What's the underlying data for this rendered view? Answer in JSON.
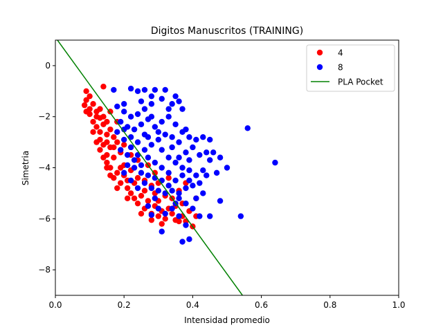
{
  "chart_data": {
    "type": "scatter",
    "title": "Digitos Manuscritos (TRAINING)",
    "xlabel": "Intensidad promedio",
    "ylabel": "Simetria",
    "xlim": [
      0.0,
      1.0
    ],
    "ylim": [
      -9.0,
      1.0
    ],
    "xticks": [
      0.0,
      0.2,
      0.4,
      0.6,
      0.8,
      1.0
    ],
    "xtick_labels": [
      "0.0",
      "0.2",
      "0.4",
      "0.6",
      "0.8",
      "1.0"
    ],
    "yticks": [
      0,
      -2,
      -4,
      -6,
      -8
    ],
    "ytick_labels": [
      "0",
      "−2",
      "−4",
      "−6",
      "−8"
    ],
    "legend_position": "top-right",
    "grid": false,
    "series": [
      {
        "name": "4",
        "kind": "points",
        "color": "#ff0000",
        "points": [
          [
            0.14,
            -0.82
          ],
          [
            0.09,
            -1.0
          ],
          [
            0.1,
            -1.2
          ],
          [
            0.09,
            -1.35
          ],
          [
            0.085,
            -1.55
          ],
          [
            0.09,
            -1.8
          ],
          [
            0.1,
            -1.7
          ],
          [
            0.11,
            -1.5
          ],
          [
            0.1,
            -1.9
          ],
          [
            0.12,
            -2.0
          ],
          [
            0.11,
            -2.2
          ],
          [
            0.13,
            -2.05
          ],
          [
            0.12,
            -2.4
          ],
          [
            0.13,
            -2.6
          ],
          [
            0.14,
            -2.3
          ],
          [
            0.13,
            -2.9
          ],
          [
            0.14,
            -3.1
          ],
          [
            0.15,
            -2.7
          ],
          [
            0.13,
            -3.3
          ],
          [
            0.15,
            -3.5
          ],
          [
            0.16,
            -3.2
          ],
          [
            0.15,
            -3.8
          ],
          [
            0.16,
            -4.0
          ],
          [
            0.17,
            -3.6
          ],
          [
            0.18,
            -4.2
          ],
          [
            0.17,
            -4.4
          ],
          [
            0.19,
            -4.6
          ],
          [
            0.2,
            -4.3
          ],
          [
            0.21,
            -4.8
          ],
          [
            0.22,
            -5.0
          ],
          [
            0.23,
            -5.2
          ],
          [
            0.24,
            -5.4
          ],
          [
            0.25,
            -5.1
          ],
          [
            0.26,
            -5.6
          ],
          [
            0.27,
            -5.3
          ],
          [
            0.28,
            -5.8
          ],
          [
            0.29,
            -5.5
          ],
          [
            0.3,
            -5.9
          ],
          [
            0.31,
            -5.7
          ],
          [
            0.32,
            -6.0
          ],
          [
            0.33,
            -5.6
          ],
          [
            0.35,
            -6.05
          ],
          [
            0.38,
            -6.1
          ],
          [
            0.4,
            -6.3
          ],
          [
            0.41,
            -5.9
          ],
          [
            0.37,
            -5.4
          ],
          [
            0.34,
            -5.2
          ],
          [
            0.36,
            -4.9
          ],
          [
            0.3,
            -4.6
          ],
          [
            0.28,
            -4.7
          ],
          [
            0.26,
            -4.5
          ],
          [
            0.24,
            -4.4
          ],
          [
            0.22,
            -4.1
          ],
          [
            0.2,
            -3.9
          ],
          [
            0.19,
            -3.4
          ],
          [
            0.18,
            -3.0
          ],
          [
            0.17,
            -2.8
          ],
          [
            0.16,
            -2.5
          ],
          [
            0.15,
            -2.2
          ],
          [
            0.14,
            -2.0
          ],
          [
            0.13,
            -1.7
          ],
          [
            0.12,
            -1.8
          ],
          [
            0.11,
            -2.6
          ],
          [
            0.12,
            -3.0
          ],
          [
            0.14,
            -3.6
          ],
          [
            0.16,
            -4.3
          ],
          [
            0.18,
            -4.8
          ],
          [
            0.21,
            -5.2
          ],
          [
            0.25,
            -5.8
          ],
          [
            0.28,
            -6.05
          ],
          [
            0.31,
            -6.2
          ],
          [
            0.34,
            -5.8
          ],
          [
            0.39,
            -5.7
          ],
          [
            0.41,
            -5.2
          ],
          [
            0.38,
            -4.6
          ],
          [
            0.33,
            -4.4
          ],
          [
            0.29,
            -4.2
          ],
          [
            0.27,
            -3.9
          ],
          [
            0.24,
            -3.7
          ],
          [
            0.22,
            -3.5
          ],
          [
            0.2,
            -3.1
          ],
          [
            0.17,
            -3.2
          ],
          [
            0.15,
            -3.0
          ],
          [
            0.16,
            -1.8
          ],
          [
            0.18,
            -2.2
          ],
          [
            0.19,
            -4.0
          ],
          [
            0.23,
            -4.6
          ],
          [
            0.26,
            -4.9
          ],
          [
            0.3,
            -5.3
          ],
          [
            0.32,
            -5.1
          ],
          [
            0.35,
            -5.5
          ],
          [
            0.37,
            -5.9
          ],
          [
            0.36,
            -6.1
          ],
          [
            0.29,
            -5.0
          ],
          [
            0.21,
            -4.5
          ],
          [
            0.15,
            -4.0
          ]
        ]
      },
      {
        "name": "8",
        "kind": "points",
        "color": "#0000ff",
        "points": [
          [
            0.56,
            -2.45
          ],
          [
            0.64,
            -3.8
          ],
          [
            0.54,
            -5.9
          ],
          [
            0.22,
            -0.9
          ],
          [
            0.24,
            -1.0
          ],
          [
            0.26,
            -0.95
          ],
          [
            0.29,
            -0.95
          ],
          [
            0.32,
            -0.95
          ],
          [
            0.28,
            -1.2
          ],
          [
            0.31,
            -1.3
          ],
          [
            0.35,
            -1.2
          ],
          [
            0.17,
            -0.95
          ],
          [
            0.18,
            -1.6
          ],
          [
            0.2,
            -1.5
          ],
          [
            0.34,
            -1.5
          ],
          [
            0.37,
            -1.7
          ],
          [
            0.36,
            -1.4
          ],
          [
            0.33,
            -1.7
          ],
          [
            0.28,
            -1.5
          ],
          [
            0.26,
            -1.7
          ],
          [
            0.24,
            -1.9
          ],
          [
            0.22,
            -2.0
          ],
          [
            0.2,
            -1.8
          ],
          [
            0.19,
            -2.2
          ],
          [
            0.21,
            -2.4
          ],
          [
            0.23,
            -2.5
          ],
          [
            0.25,
            -2.3
          ],
          [
            0.27,
            -2.1
          ],
          [
            0.29,
            -2.4
          ],
          [
            0.31,
            -2.2
          ],
          [
            0.33,
            -2.0
          ],
          [
            0.35,
            -2.3
          ],
          [
            0.37,
            -2.6
          ],
          [
            0.39,
            -2.8
          ],
          [
            0.41,
            -2.9
          ],
          [
            0.4,
            -3.2
          ],
          [
            0.38,
            -3.4
          ],
          [
            0.36,
            -3.0
          ],
          [
            0.34,
            -2.8
          ],
          [
            0.32,
            -2.7
          ],
          [
            0.3,
            -2.9
          ],
          [
            0.28,
            -3.1
          ],
          [
            0.26,
            -3.3
          ],
          [
            0.24,
            -3.0
          ],
          [
            0.22,
            -2.8
          ],
          [
            0.2,
            -2.9
          ],
          [
            0.18,
            -2.6
          ],
          [
            0.19,
            -3.3
          ],
          [
            0.21,
            -3.5
          ],
          [
            0.23,
            -3.7
          ],
          [
            0.25,
            -3.9
          ],
          [
            0.27,
            -3.6
          ],
          [
            0.29,
            -3.8
          ],
          [
            0.31,
            -4.0
          ],
          [
            0.33,
            -3.6
          ],
          [
            0.35,
            -3.8
          ],
          [
            0.37,
            -4.0
          ],
          [
            0.39,
            -3.7
          ],
          [
            0.42,
            -3.5
          ],
          [
            0.44,
            -3.4
          ],
          [
            0.46,
            -3.4
          ],
          [
            0.45,
            -3.7
          ],
          [
            0.43,
            -4.1
          ],
          [
            0.41,
            -4.3
          ],
          [
            0.39,
            -4.5
          ],
          [
            0.37,
            -4.3
          ],
          [
            0.35,
            -4.5
          ],
          [
            0.33,
            -4.2
          ],
          [
            0.31,
            -4.5
          ],
          [
            0.29,
            -4.4
          ],
          [
            0.27,
            -4.3
          ],
          [
            0.25,
            -4.2
          ],
          [
            0.23,
            -4.0
          ],
          [
            0.21,
            -3.9
          ],
          [
            0.26,
            -4.6
          ],
          [
            0.28,
            -4.8
          ],
          [
            0.3,
            -4.9
          ],
          [
            0.32,
            -5.0
          ],
          [
            0.34,
            -4.9
          ],
          [
            0.36,
            -5.0
          ],
          [
            0.38,
            -4.8
          ],
          [
            0.4,
            -4.7
          ],
          [
            0.42,
            -4.6
          ],
          [
            0.44,
            -4.3
          ],
          [
            0.47,
            -4.2
          ],
          [
            0.5,
            -4.0
          ],
          [
            0.48,
            -3.6
          ],
          [
            0.43,
            -2.8
          ],
          [
            0.45,
            -2.9
          ],
          [
            0.38,
            -2.5
          ],
          [
            0.36,
            -5.2
          ],
          [
            0.38,
            -5.4
          ],
          [
            0.4,
            -5.6
          ],
          [
            0.42,
            -5.9
          ],
          [
            0.36,
            -5.9
          ],
          [
            0.38,
            -6.25
          ],
          [
            0.39,
            -6.8
          ],
          [
            0.37,
            -6.9
          ],
          [
            0.31,
            -6.5
          ],
          [
            0.28,
            -5.85
          ],
          [
            0.27,
            -5.5
          ],
          [
            0.3,
            -5.6
          ],
          [
            0.32,
            -5.8
          ],
          [
            0.34,
            -5.6
          ],
          [
            0.48,
            -5.3
          ],
          [
            0.45,
            -5.9
          ],
          [
            0.41,
            -5.2
          ],
          [
            0.43,
            -5.0
          ],
          [
            0.24,
            -4.8
          ],
          [
            0.22,
            -4.5
          ],
          [
            0.2,
            -4.2
          ],
          [
            0.26,
            -2.7
          ],
          [
            0.3,
            -2.6
          ],
          [
            0.34,
            -3.2
          ],
          [
            0.28,
            -2.0
          ],
          [
            0.25,
            -1.4
          ],
          [
            0.36,
            -3.6
          ],
          [
            0.33,
            -4.7
          ],
          [
            0.29,
            -5.2
          ],
          [
            0.24,
            -3.5
          ],
          [
            0.22,
            -3.2
          ],
          [
            0.2,
            -2.5
          ],
          [
            0.31,
            -3.3
          ],
          [
            0.27,
            -2.8
          ],
          [
            0.39,
            -4.1
          ],
          [
            0.35,
            -5.4
          ]
        ]
      },
      {
        "name": "PLA Pocket",
        "kind": "line",
        "color": "#008000",
        "points": [
          [
            0.006,
            1.0
          ],
          [
            0.545,
            -9.0
          ]
        ]
      }
    ]
  }
}
